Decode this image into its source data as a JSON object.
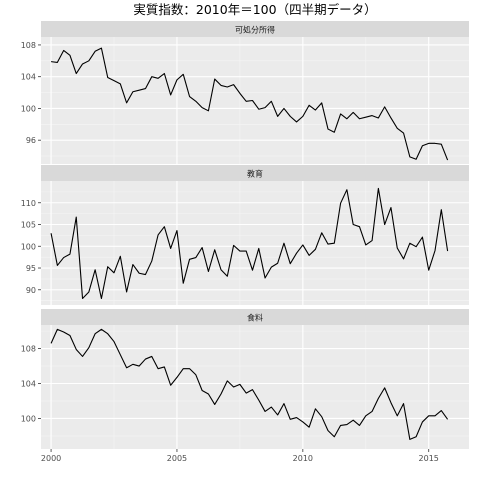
{
  "chart_data": {
    "type": "line",
    "title": "実質指数：2010年＝100（四半期データ）",
    "xlabel": "",
    "ylabel": "",
    "x_ticks": [
      2000,
      2005,
      2010,
      2015
    ],
    "x_range": [
      1999.6,
      2016.6
    ],
    "grid": true,
    "legend": "none",
    "colors": {
      "panel": "#ebebeb",
      "strip": "#d9d9d9",
      "grid_major": "#ffffff",
      "line": "#000000",
      "tick_text": "#4d4d4d"
    },
    "facets": [
      {
        "name": "可処分所得",
        "ylim": [
          93.0,
          109.0
        ],
        "y_ticks": [
          96,
          100,
          104,
          108
        ],
        "x_start": 2000.0,
        "x_step": 0.25,
        "values": [
          105.9,
          105.8,
          107.3,
          106.7,
          104.4,
          105.6,
          106.0,
          107.2,
          107.6,
          103.9,
          103.5,
          103.1,
          100.7,
          102.1,
          102.3,
          102.5,
          104.0,
          103.8,
          104.4,
          101.7,
          103.6,
          104.3,
          101.5,
          100.9,
          100.1,
          99.7,
          103.7,
          102.9,
          102.7,
          103.0,
          101.9,
          100.9,
          101.0,
          99.9,
          100.1,
          100.9,
          99.0,
          100.0,
          99.0,
          98.3,
          99.0,
          100.4,
          99.8,
          100.7,
          97.4,
          97.0,
          99.3,
          98.7,
          99.5,
          98.7,
          98.9,
          99.1,
          98.8,
          100.2,
          98.8,
          97.5,
          96.9,
          93.9,
          93.6,
          95.3,
          95.6,
          95.6,
          95.5,
          93.5
        ]
      },
      {
        "name": "教育",
        "ylim": [
          86.5,
          115.0
        ],
        "y_ticks": [
          90,
          95,
          100,
          105,
          110
        ],
        "x_start": 2000.0,
        "x_step": 0.25,
        "values": [
          103.0,
          95.6,
          97.4,
          98.2,
          106.7,
          88.0,
          89.5,
          94.6,
          88.0,
          95.3,
          93.9,
          97.7,
          89.5,
          95.8,
          93.8,
          93.5,
          96.6,
          102.6,
          104.5,
          99.5,
          103.6,
          91.5,
          97.0,
          97.4,
          99.7,
          94.2,
          99.2,
          94.6,
          93.1,
          100.2,
          98.9,
          98.9,
          94.5,
          99.5,
          92.7,
          95.2,
          96.1,
          100.7,
          96.0,
          98.4,
          100.3,
          97.9,
          99.3,
          103.1,
          100.5,
          100.7,
          109.9,
          113.0,
          105.0,
          104.5,
          100.3,
          101.3,
          113.3,
          105.0,
          108.9,
          99.6,
          97.1,
          100.7,
          99.9,
          102.1,
          94.5,
          99.0,
          108.4,
          98.9
        ]
      },
      {
        "name": "食料",
        "ylim": [
          96.5,
          110.7
        ],
        "y_ticks": [
          100,
          104,
          108
        ],
        "x_start": 2000.0,
        "x_step": 0.25,
        "values": [
          108.6,
          110.2,
          109.9,
          109.5,
          107.9,
          107.1,
          108.1,
          109.7,
          110.2,
          109.7,
          108.8,
          107.3,
          105.8,
          106.2,
          106.0,
          106.8,
          107.1,
          105.7,
          105.9,
          103.8,
          104.7,
          105.7,
          105.7,
          105.0,
          103.2,
          102.8,
          101.6,
          102.8,
          104.3,
          103.6,
          103.9,
          102.9,
          103.3,
          102.1,
          100.8,
          101.3,
          100.4,
          101.7,
          99.9,
          100.1,
          99.6,
          99.0,
          101.1,
          100.2,
          98.6,
          97.9,
          99.2,
          99.3,
          99.8,
          99.2,
          100.3,
          100.8,
          102.3,
          103.5,
          101.8,
          100.3,
          101.7,
          97.6,
          97.9,
          99.6,
          100.3,
          100.3,
          100.9,
          99.9
        ]
      }
    ]
  }
}
